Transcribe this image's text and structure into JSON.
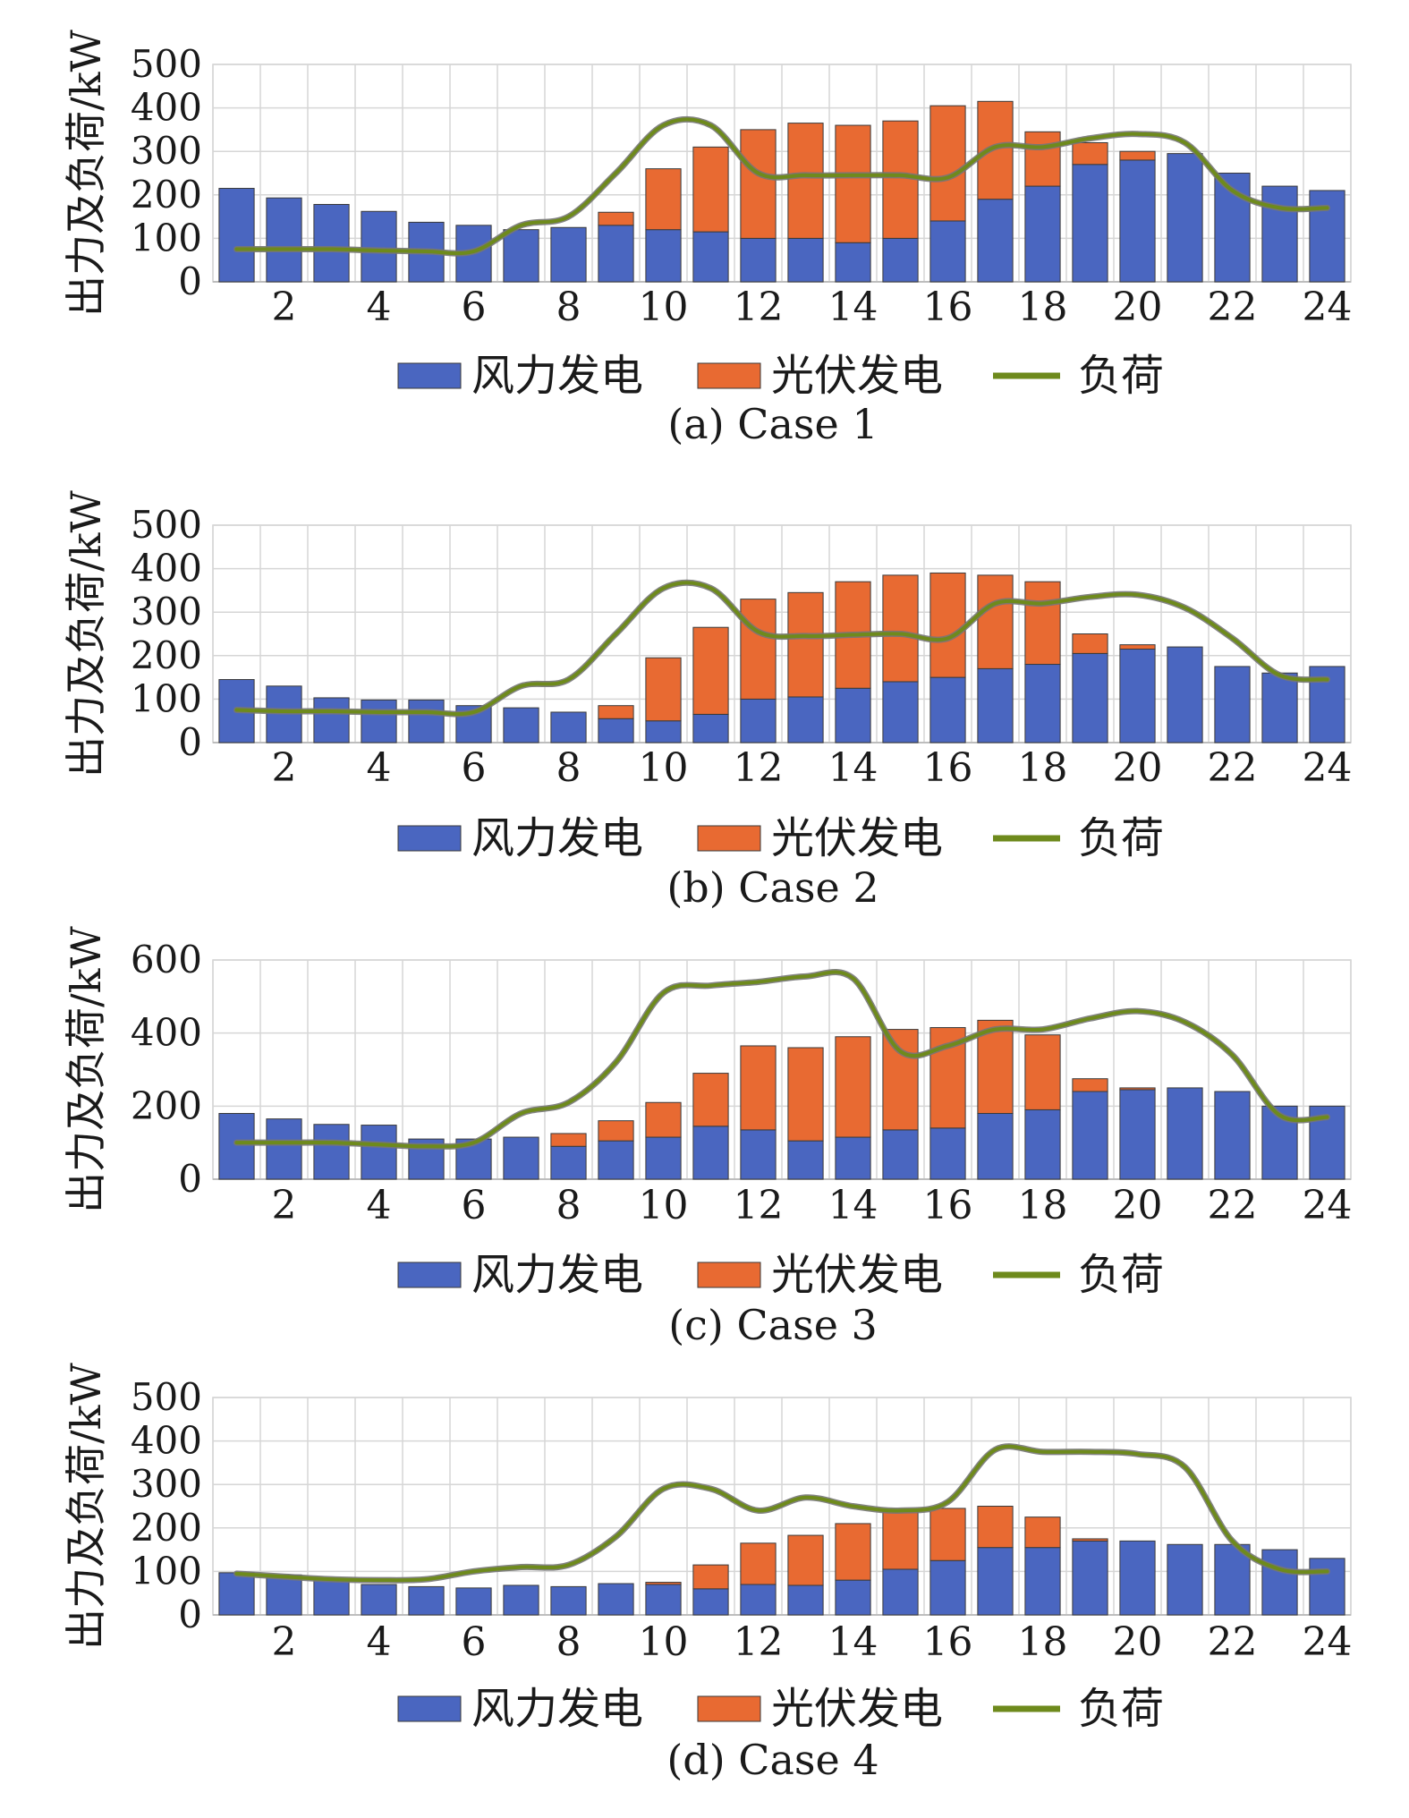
{
  "chart_data": [
    {
      "type": "bar",
      "caption": "(a) Case 1",
      "ylabel": "出力及负荷/kW",
      "ylim": [
        0,
        500
      ],
      "yticks": [
        0,
        100,
        200,
        300,
        400,
        500
      ],
      "xticks": [
        2,
        4,
        6,
        8,
        10,
        12,
        14,
        16,
        18,
        20,
        22,
        24
      ],
      "x": [
        1,
        2,
        3,
        4,
        5,
        6,
        7,
        8,
        9,
        10,
        11,
        12,
        13,
        14,
        15,
        16,
        17,
        18,
        19,
        20,
        21,
        22,
        23,
        24
      ],
      "grid": true,
      "legend_position": "bottom",
      "series": [
        {
          "name": "风力发电",
          "kind": "bar",
          "color": "#4a66c0",
          "values": [
            215,
            193,
            178,
            162,
            137,
            130,
            120,
            125,
            130,
            120,
            115,
            100,
            100,
            90,
            100,
            140,
            190,
            220,
            270,
            280,
            295,
            250,
            220,
            210
          ]
        },
        {
          "name": "光伏发电",
          "kind": "bar",
          "color": "#e86a32",
          "values": [
            0,
            0,
            0,
            0,
            0,
            0,
            0,
            0,
            30,
            140,
            195,
            250,
            265,
            270,
            270,
            265,
            225,
            125,
            50,
            20,
            0,
            0,
            0,
            0
          ]
        },
        {
          "name": "负荷",
          "kind": "line",
          "color": "#6e8a1c",
          "values": [
            75,
            75,
            75,
            72,
            70,
            70,
            130,
            150,
            250,
            360,
            360,
            250,
            245,
            245,
            245,
            240,
            310,
            310,
            330,
            340,
            320,
            210,
            170,
            170
          ]
        }
      ]
    },
    {
      "type": "bar",
      "caption": "(b) Case 2",
      "ylabel": "出力及负荷/kW",
      "ylim": [
        0,
        500
      ],
      "yticks": [
        0,
        100,
        200,
        300,
        400,
        500
      ],
      "xticks": [
        2,
        4,
        6,
        8,
        10,
        12,
        14,
        16,
        18,
        20,
        22,
        24
      ],
      "x": [
        1,
        2,
        3,
        4,
        5,
        6,
        7,
        8,
        9,
        10,
        11,
        12,
        13,
        14,
        15,
        16,
        17,
        18,
        19,
        20,
        21,
        22,
        23,
        24
      ],
      "grid": true,
      "legend_position": "bottom",
      "series": [
        {
          "name": "风力发电",
          "kind": "bar",
          "color": "#4a66c0",
          "values": [
            145,
            130,
            103,
            98,
            98,
            85,
            80,
            70,
            55,
            50,
            65,
            100,
            105,
            125,
            140,
            150,
            170,
            180,
            205,
            215,
            220,
            175,
            160,
            175
          ]
        },
        {
          "name": "光伏发电",
          "kind": "bar",
          "color": "#e86a32",
          "values": [
            0,
            0,
            0,
            0,
            0,
            0,
            0,
            0,
            30,
            145,
            200,
            230,
            240,
            245,
            245,
            240,
            215,
            190,
            45,
            10,
            0,
            0,
            0,
            0
          ]
        },
        {
          "name": "负荷",
          "kind": "line",
          "color": "#6e8a1c",
          "values": [
            75,
            72,
            72,
            70,
            70,
            70,
            130,
            145,
            250,
            355,
            355,
            255,
            245,
            248,
            250,
            240,
            320,
            320,
            335,
            340,
            310,
            240,
            155,
            145
          ]
        }
      ]
    },
    {
      "type": "bar",
      "caption": "(c) Case 3",
      "ylabel": "出力及负荷/kW",
      "ylim": [
        0,
        600
      ],
      "yticks": [
        0,
        200,
        400,
        600
      ],
      "xticks": [
        2,
        4,
        6,
        8,
        10,
        12,
        14,
        16,
        18,
        20,
        22,
        24
      ],
      "x": [
        1,
        2,
        3,
        4,
        5,
        6,
        7,
        8,
        9,
        10,
        11,
        12,
        13,
        14,
        15,
        16,
        17,
        18,
        19,
        20,
        21,
        22,
        23,
        24
      ],
      "grid": true,
      "legend_position": "bottom",
      "series": [
        {
          "name": "风力发电",
          "kind": "bar",
          "color": "#4a66c0",
          "values": [
            180,
            165,
            150,
            148,
            110,
            110,
            115,
            90,
            105,
            115,
            145,
            135,
            105,
            115,
            135,
            140,
            180,
            190,
            240,
            245,
            250,
            240,
            200,
            200
          ]
        },
        {
          "name": "光伏发电",
          "kind": "bar",
          "color": "#e86a32",
          "values": [
            0,
            0,
            0,
            0,
            0,
            0,
            0,
            35,
            55,
            95,
            145,
            230,
            255,
            275,
            275,
            275,
            255,
            205,
            35,
            5,
            0,
            0,
            0,
            0
          ]
        },
        {
          "name": "负荷",
          "kind": "line",
          "color": "#6e8a1c",
          "values": [
            100,
            100,
            100,
            95,
            90,
            100,
            180,
            210,
            320,
            510,
            530,
            540,
            555,
            550,
            350,
            365,
            410,
            410,
            440,
            460,
            430,
            340,
            175,
            170
          ]
        }
      ]
    },
    {
      "type": "bar",
      "caption": "(d) Case 4",
      "ylabel": "出力及负荷/kW",
      "ylim": [
        0,
        500
      ],
      "yticks": [
        0,
        100,
        200,
        300,
        400,
        500
      ],
      "xticks": [
        2,
        4,
        6,
        8,
        10,
        12,
        14,
        16,
        18,
        20,
        22,
        24
      ],
      "x": [
        1,
        2,
        3,
        4,
        5,
        6,
        7,
        8,
        9,
        10,
        11,
        12,
        13,
        14,
        15,
        16,
        17,
        18,
        19,
        20,
        21,
        22,
        23,
        24
      ],
      "grid": true,
      "legend_position": "bottom",
      "series": [
        {
          "name": "风力发电",
          "kind": "bar",
          "color": "#4a66c0",
          "values": [
            97,
            92,
            82,
            70,
            65,
            62,
            68,
            65,
            72,
            70,
            60,
            70,
            68,
            80,
            105,
            125,
            155,
            155,
            170,
            170,
            162,
            162,
            150,
            130
          ]
        },
        {
          "name": "光伏发电",
          "kind": "bar",
          "color": "#e86a32",
          "values": [
            0,
            0,
            0,
            0,
            0,
            0,
            0,
            0,
            0,
            5,
            55,
            95,
            115,
            130,
            135,
            120,
            95,
            70,
            5,
            0,
            0,
            0,
            0,
            0
          ]
        },
        {
          "name": "负荷",
          "kind": "line",
          "color": "#6e8a1c",
          "values": [
            95,
            88,
            82,
            80,
            82,
            100,
            110,
            115,
            180,
            290,
            290,
            240,
            270,
            250,
            240,
            260,
            380,
            375,
            375,
            370,
            340,
            170,
            105,
            100
          ]
        }
      ]
    }
  ]
}
